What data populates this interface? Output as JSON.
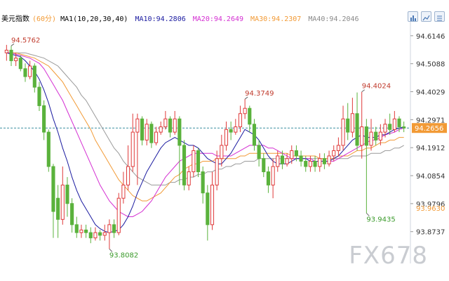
{
  "legend": {
    "title": "美元指数",
    "period": "(60分)",
    "ma_label": "MA1(10,20,30,40)",
    "ma10": "MA10:94.2806",
    "ma20": "MA20:94.2649",
    "ma30": "MA30:94.2307",
    "ma40": "MA40:94.2046"
  },
  "watermark": "FX678",
  "toolbar": {
    "icons": [
      "bar-chart-icon",
      "chart-type-icon",
      "settings-icon"
    ]
  },
  "colors": {
    "up": "#df3a3a",
    "down": "#5ab23c",
    "ma10": "#1a1aa0",
    "ma20": "#d42fd2",
    "ma30": "#f29a35",
    "ma40": "#9a9a9a",
    "price_line": "#3a8fa0",
    "price_tag": "#f29a35"
  },
  "chart_data": {
    "type": "candlestick",
    "title": "美元指数",
    "ylim": [
      93.78,
      94.67
    ],
    "y_ticks": [
      "94.6146",
      "94.5088",
      "94.4029",
      "94.2971",
      "94.1912",
      "94.0854",
      "93.9796",
      "93.8737"
    ],
    "current_price": "94.2656",
    "right_tag": "93.9630",
    "annotations": [
      {
        "text": "94.5762",
        "value": 94.5762,
        "index": 1,
        "kind": "high"
      },
      {
        "text": "93.8082",
        "value": 93.8082,
        "index": 22,
        "kind": "low"
      },
      {
        "text": "94.3749",
        "value": 94.3749,
        "index": 51,
        "kind": "high"
      },
      {
        "text": "94.4024",
        "value": 94.4024,
        "index": 76,
        "kind": "high"
      },
      {
        "text": "93.9435",
        "value": 93.9435,
        "index": 77,
        "kind": "low"
      }
    ],
    "candles": [
      [
        94.55,
        94.56,
        94.58,
        94.52
      ],
      [
        94.56,
        94.52,
        94.576,
        94.5
      ],
      [
        94.52,
        94.53,
        94.55,
        94.5
      ],
      [
        94.53,
        94.49,
        94.54,
        94.48
      ],
      [
        94.49,
        94.46,
        94.51,
        94.44
      ],
      [
        94.46,
        94.5,
        94.52,
        94.45
      ],
      [
        94.5,
        94.42,
        94.51,
        94.4
      ],
      [
        94.42,
        94.35,
        94.44,
        94.33
      ],
      [
        94.35,
        94.25,
        94.37,
        94.22
      ],
      [
        94.25,
        94.12,
        94.26,
        94.1
      ],
      [
        94.12,
        93.95,
        94.13,
        93.85
      ],
      [
        94.0,
        93.92,
        94.05,
        93.85
      ],
      [
        93.92,
        94.05,
        94.12,
        93.9
      ],
      [
        94.05,
        93.98,
        94.08,
        93.93
      ],
      [
        93.98,
        93.9,
        94.0,
        93.87
      ],
      [
        93.9,
        93.87,
        93.93,
        93.85
      ],
      [
        93.87,
        93.88,
        93.9,
        93.85
      ],
      [
        93.88,
        93.87,
        93.9,
        93.85
      ],
      [
        93.87,
        93.85,
        93.89,
        93.83
      ],
      [
        93.85,
        93.87,
        93.89,
        93.84
      ],
      [
        93.87,
        93.86,
        93.88,
        93.84
      ],
      [
        93.86,
        93.87,
        93.9,
        93.84
      ],
      [
        93.87,
        93.9,
        93.92,
        93.808
      ],
      [
        93.9,
        93.87,
        93.92,
        93.85
      ],
      [
        93.87,
        94.0,
        94.02,
        93.86
      ],
      [
        94.0,
        94.05,
        94.1,
        93.98
      ],
      [
        94.05,
        94.12,
        94.2,
        94.03
      ],
      [
        94.12,
        94.25,
        94.32,
        94.1
      ],
      [
        94.25,
        94.3,
        94.32,
        94.05
      ],
      [
        94.3,
        94.22,
        94.31,
        94.2
      ],
      [
        94.22,
        94.28,
        94.3,
        94.2
      ],
      [
        94.28,
        94.21,
        94.29,
        94.19
      ],
      [
        94.21,
        94.25,
        94.27,
        94.2
      ],
      [
        94.25,
        94.27,
        94.29,
        94.24
      ],
      [
        94.27,
        94.3,
        94.33,
        94.26
      ],
      [
        94.3,
        94.25,
        94.31,
        94.23
      ],
      [
        94.25,
        94.3,
        94.33,
        94.24
      ],
      [
        94.3,
        94.2,
        94.31,
        94.05
      ],
      [
        94.2,
        94.05,
        94.22,
        94.03
      ],
      [
        94.05,
        94.1,
        94.12,
        94.03
      ],
      [
        94.1,
        94.18,
        94.2,
        94.08
      ],
      [
        94.18,
        94.1,
        94.19,
        94.08
      ],
      [
        94.1,
        94.02,
        94.12,
        93.98
      ],
      [
        94.02,
        93.9,
        94.05,
        93.84
      ],
      [
        93.9,
        94.05,
        94.1,
        93.88
      ],
      [
        94.05,
        94.15,
        94.18,
        94.03
      ],
      [
        94.15,
        94.2,
        94.24,
        94.12
      ],
      [
        94.2,
        94.26,
        94.29,
        94.18
      ],
      [
        94.26,
        94.25,
        94.29,
        94.22
      ],
      [
        94.25,
        94.27,
        94.3,
        94.24
      ],
      [
        94.27,
        94.32,
        94.35,
        94.25
      ],
      [
        94.32,
        94.34,
        94.375,
        94.3
      ],
      [
        94.34,
        94.28,
        94.35,
        94.25
      ],
      [
        94.28,
        94.2,
        94.3,
        94.18
      ],
      [
        94.2,
        94.15,
        94.22,
        94.12
      ],
      [
        94.15,
        94.1,
        94.17,
        94.08
      ],
      [
        94.1,
        94.05,
        94.12,
        94.02
      ],
      [
        94.05,
        94.12,
        94.15,
        94.0
      ],
      [
        94.12,
        94.16,
        94.18,
        94.1
      ],
      [
        94.16,
        94.13,
        94.18,
        94.11
      ],
      [
        94.13,
        94.15,
        94.17,
        94.12
      ],
      [
        94.15,
        94.18,
        94.2,
        94.13
      ],
      [
        94.18,
        94.16,
        94.2,
        94.14
      ],
      [
        94.16,
        94.14,
        94.18,
        94.12
      ],
      [
        94.14,
        94.12,
        94.16,
        94.1
      ],
      [
        94.12,
        94.14,
        94.16,
        94.1
      ],
      [
        94.14,
        94.12,
        94.16,
        94.1
      ],
      [
        94.12,
        94.15,
        94.17,
        94.1
      ],
      [
        94.15,
        94.13,
        94.17,
        94.11
      ],
      [
        94.13,
        94.16,
        94.18,
        94.12
      ],
      [
        94.16,
        94.18,
        94.2,
        94.14
      ],
      [
        94.18,
        94.2,
        94.23,
        94.16
      ],
      [
        94.2,
        94.3,
        94.35,
        94.18
      ],
      [
        94.3,
        94.25,
        94.36,
        94.22
      ],
      [
        94.25,
        94.32,
        94.38,
        94.23
      ],
      [
        94.32,
        94.2,
        94.4,
        94.18
      ],
      [
        94.2,
        94.27,
        94.4024,
        94.15
      ],
      [
        94.27,
        94.2,
        94.3,
        93.9435
      ],
      [
        94.2,
        94.25,
        94.3,
        94.18
      ],
      [
        94.25,
        94.22,
        94.27,
        94.2
      ],
      [
        94.22,
        94.25,
        94.28,
        94.2
      ],
      [
        94.25,
        94.28,
        94.3,
        94.23
      ],
      [
        94.28,
        94.26,
        94.32,
        94.24
      ],
      [
        94.26,
        94.3,
        94.33,
        94.25
      ],
      [
        94.3,
        94.27,
        94.31,
        94.25
      ],
      [
        94.27,
        94.2656,
        94.29,
        94.25
      ]
    ],
    "ma": [
      {
        "name": "MA10",
        "values": [
          94.55,
          94.545,
          94.54,
          94.535,
          94.52,
          94.5,
          94.48,
          94.45,
          94.41,
          94.36,
          94.3,
          94.25,
          94.19,
          94.14,
          94.08,
          94.03,
          93.99,
          93.96,
          93.93,
          93.9,
          93.885,
          93.875,
          93.87,
          93.875,
          93.88,
          93.9,
          93.93,
          93.97,
          94.02,
          94.06,
          94.1,
          94.13,
          94.16,
          94.19,
          94.21,
          94.22,
          94.23,
          94.22,
          94.21,
          94.2,
          94.2,
          94.19,
          94.17,
          94.15,
          94.14,
          94.13,
          94.13,
          94.15,
          94.17,
          94.2,
          94.23,
          94.26,
          94.25,
          94.24,
          94.22,
          94.19,
          94.16,
          94.14,
          94.13,
          94.13,
          94.13,
          94.14,
          94.15,
          94.15,
          94.15,
          94.14,
          94.14,
          94.14,
          94.14,
          94.14,
          94.15,
          94.16,
          94.18,
          94.2,
          94.22,
          94.23,
          94.24,
          94.23,
          94.23,
          94.23,
          94.24,
          94.24,
          94.25,
          94.26,
          94.265,
          94.27
        ]
      },
      {
        "name": "MA20",
        "values": [
          94.55,
          94.55,
          94.545,
          94.54,
          94.535,
          94.53,
          94.52,
          94.51,
          94.49,
          94.46,
          94.43,
          94.4,
          94.37,
          94.33,
          94.29,
          94.25,
          94.21,
          94.17,
          94.13,
          94.09,
          94.05,
          94.02,
          93.99,
          93.97,
          93.95,
          93.94,
          93.93,
          93.93,
          93.94,
          93.95,
          93.97,
          93.99,
          94.02,
          94.05,
          94.08,
          94.1,
          94.12,
          94.14,
          94.15,
          94.16,
          94.17,
          94.17,
          94.17,
          94.17,
          94.17,
          94.16,
          94.16,
          94.16,
          94.16,
          94.17,
          94.18,
          94.19,
          94.2,
          94.2,
          94.2,
          94.2,
          94.19,
          94.19,
          94.18,
          94.17,
          94.16,
          94.15,
          94.15,
          94.15,
          94.15,
          94.15,
          94.14,
          94.14,
          94.14,
          94.14,
          94.14,
          94.15,
          94.16,
          94.17,
          94.18,
          94.19,
          94.2,
          94.21,
          94.22,
          94.22,
          94.23,
          94.24,
          94.245,
          94.25,
          94.26,
          94.265
        ]
      },
      {
        "name": "MA30",
        "values": [
          94.55,
          94.55,
          94.55,
          94.545,
          94.54,
          94.535,
          94.53,
          94.52,
          94.51,
          94.5,
          94.48,
          94.46,
          94.44,
          94.41,
          94.38,
          94.35,
          94.32,
          94.29,
          94.26,
          94.22,
          94.19,
          94.16,
          94.13,
          94.1,
          94.07,
          94.05,
          94.03,
          94.01,
          94.0,
          93.99,
          93.99,
          94.0,
          94.01,
          94.02,
          94.04,
          94.06,
          94.08,
          94.09,
          94.11,
          94.12,
          94.13,
          94.13,
          94.14,
          94.14,
          94.14,
          94.15,
          94.15,
          94.15,
          94.15,
          94.15,
          94.16,
          94.16,
          94.17,
          94.17,
          94.17,
          94.17,
          94.17,
          94.17,
          94.17,
          94.17,
          94.17,
          94.16,
          94.16,
          94.16,
          94.16,
          94.16,
          94.16,
          94.15,
          94.15,
          94.15,
          94.15,
          94.16,
          94.16,
          94.16,
          94.17,
          94.18,
          94.18,
          94.19,
          94.19,
          94.2,
          94.21,
          94.21,
          94.22,
          94.22,
          94.23,
          94.23
        ]
      },
      {
        "name": "MA40",
        "values": [
          94.55,
          94.55,
          94.55,
          94.55,
          94.55,
          94.545,
          94.54,
          94.535,
          94.53,
          94.52,
          94.51,
          94.5,
          94.48,
          94.46,
          94.44,
          94.42,
          94.39,
          94.37,
          94.34,
          94.31,
          94.28,
          94.25,
          94.22,
          94.19,
          94.17,
          94.14,
          94.12,
          94.1,
          94.08,
          94.07,
          94.06,
          94.05,
          94.05,
          94.05,
          94.05,
          94.06,
          94.06,
          94.07,
          94.07,
          94.08,
          94.08,
          94.09,
          94.09,
          94.1,
          94.1,
          94.11,
          94.11,
          94.12,
          94.12,
          94.13,
          94.13,
          94.14,
          94.14,
          94.14,
          94.15,
          94.15,
          94.15,
          94.15,
          94.15,
          94.15,
          94.15,
          94.15,
          94.15,
          94.15,
          94.15,
          94.15,
          94.15,
          94.15,
          94.15,
          94.15,
          94.15,
          94.15,
          94.15,
          94.15,
          94.16,
          94.16,
          94.16,
          94.16,
          94.17,
          94.17,
          94.17,
          94.18,
          94.18,
          94.19,
          94.19,
          94.2
        ]
      }
    ]
  }
}
